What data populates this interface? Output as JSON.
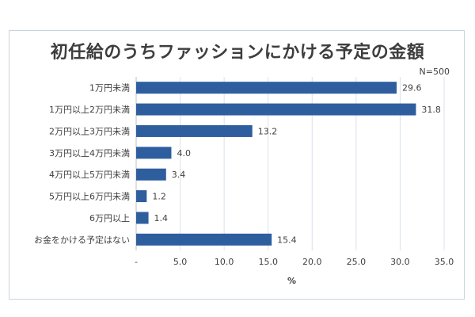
{
  "chart_data": {
    "type": "bar",
    "orientation": "horizontal",
    "title": "初任給のうちファッションにかける予定の金額",
    "note": "N=500",
    "xlabel": "%",
    "ylabel": "",
    "xlim": [
      0,
      35.0
    ],
    "grid": true,
    "legend": "none",
    "categories": [
      "1万円未満",
      "1万円以上2万円未満",
      "2万円以上3万円未満",
      "3万円以上4万円未満",
      "4万円以上5万円未満",
      "5万円以上6万円未満",
      "6万円以上",
      "お金をかける予定はない"
    ],
    "values": [
      29.6,
      31.8,
      13.2,
      4.0,
      3.4,
      1.2,
      1.4,
      15.4
    ],
    "value_labels": [
      "29.6",
      "31.8",
      "13.2",
      "4.0",
      "3.4",
      "1.2",
      "1.4",
      "15.4"
    ],
    "ticks": [
      0,
      5,
      10,
      15,
      20,
      25,
      30,
      35
    ],
    "tick_labels": [
      "-",
      "5.0",
      "10.0",
      "15.0",
      "20.0",
      "25.0",
      "30.0",
      "35.0"
    ],
    "bar_color": "#2e5e9e",
    "grid_color": "#d9e2ec"
  }
}
